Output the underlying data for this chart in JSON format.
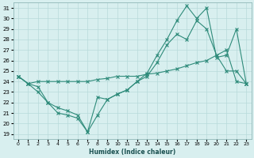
{
  "xlabel": "Humidex (Indice chaleur)",
  "x": [
    0,
    1,
    2,
    3,
    4,
    5,
    6,
    7,
    8,
    9,
    10,
    11,
    12,
    13,
    14,
    15,
    16,
    17,
    18,
    19,
    20,
    21,
    22,
    23
  ],
  "line1": [
    24.5,
    23.8,
    24.0,
    24.0,
    24.0,
    24.0,
    24.0,
    24.0,
    24.2,
    24.3,
    24.5,
    24.5,
    24.5,
    24.7,
    24.8,
    25.0,
    25.2,
    25.5,
    25.8,
    26.0,
    26.5,
    27.0,
    24.0,
    23.8
  ],
  "line2": [
    24.5,
    23.8,
    23.0,
    22.0,
    21.0,
    20.8,
    20.5,
    19.2,
    22.5,
    22.3,
    22.8,
    23.2,
    24.0,
    24.5,
    25.8,
    27.5,
    28.5,
    28.0,
    29.8,
    29.0,
    26.5,
    25.0,
    25.0,
    23.8
  ],
  "line3": [
    24.5,
    23.8,
    23.5,
    22.0,
    21.5,
    21.2,
    20.8,
    19.2,
    20.8,
    22.3,
    22.8,
    23.2,
    24.0,
    24.8,
    26.5,
    28.0,
    29.8,
    31.2,
    30.0,
    31.0,
    26.3,
    26.5,
    29.0,
    23.8
  ],
  "line_color": "#2e8b7a",
  "bg_color": "#d8efef",
  "grid_color": "#b8dada",
  "ylim": [
    18.5,
    31.5
  ],
  "yticks": [
    19,
    20,
    21,
    22,
    23,
    24,
    25,
    26,
    27,
    28,
    29,
    30,
    31
  ],
  "xlim": [
    -0.5,
    23.5
  ],
  "xticks": [
    0,
    1,
    2,
    3,
    4,
    5,
    6,
    7,
    8,
    9,
    10,
    11,
    12,
    13,
    14,
    15,
    16,
    17,
    18,
    19,
    20,
    21,
    22,
    23
  ]
}
